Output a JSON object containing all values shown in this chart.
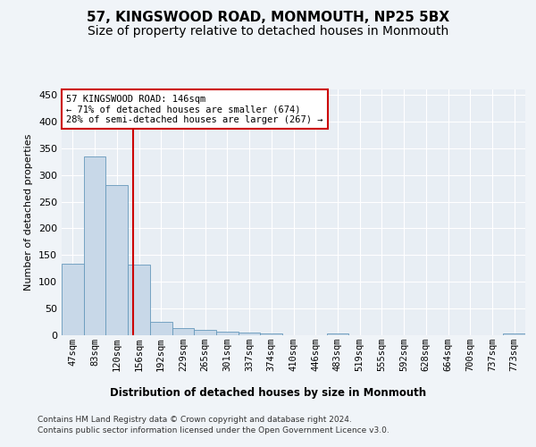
{
  "title1": "57, KINGSWOOD ROAD, MONMOUTH, NP25 5BX",
  "title2": "Size of property relative to detached houses in Monmouth",
  "xlabel": "Distribution of detached houses by size in Monmouth",
  "ylabel": "Number of detached properties",
  "bar_labels": [
    "47sqm",
    "83sqm",
    "120sqm",
    "156sqm",
    "192sqm",
    "229sqm",
    "265sqm",
    "301sqm",
    "337sqm",
    "374sqm",
    "410sqm",
    "446sqm",
    "483sqm",
    "519sqm",
    "555sqm",
    "592sqm",
    "628sqm",
    "664sqm",
    "700sqm",
    "737sqm",
    "773sqm"
  ],
  "bar_values": [
    134,
    335,
    281,
    132,
    25,
    14,
    10,
    6,
    5,
    4,
    0,
    0,
    4,
    0,
    0,
    0,
    0,
    0,
    0,
    0,
    4
  ],
  "bar_color": "#c8d8e8",
  "bar_edgecolor": "#6699bb",
  "vline_x": 2.73,
  "vline_color": "#cc0000",
  "annotation_line1": "57 KINGSWOOD ROAD: 146sqm",
  "annotation_line2": "← 71% of detached houses are smaller (674)",
  "annotation_line3": "28% of semi-detached houses are larger (267) →",
  "annotation_box_color": "#ffffff",
  "annotation_box_edgecolor": "#cc0000",
  "ylim": [
    0,
    460
  ],
  "yticks": [
    0,
    50,
    100,
    150,
    200,
    250,
    300,
    350,
    400,
    450
  ],
  "footer1": "Contains HM Land Registry data © Crown copyright and database right 2024.",
  "footer2": "Contains public sector information licensed under the Open Government Licence v3.0.",
  "bg_color": "#f0f4f8",
  "plot_bg_color": "#e8eef4",
  "grid_color": "#ffffff",
  "title1_fontsize": 11,
  "title2_fontsize": 10
}
